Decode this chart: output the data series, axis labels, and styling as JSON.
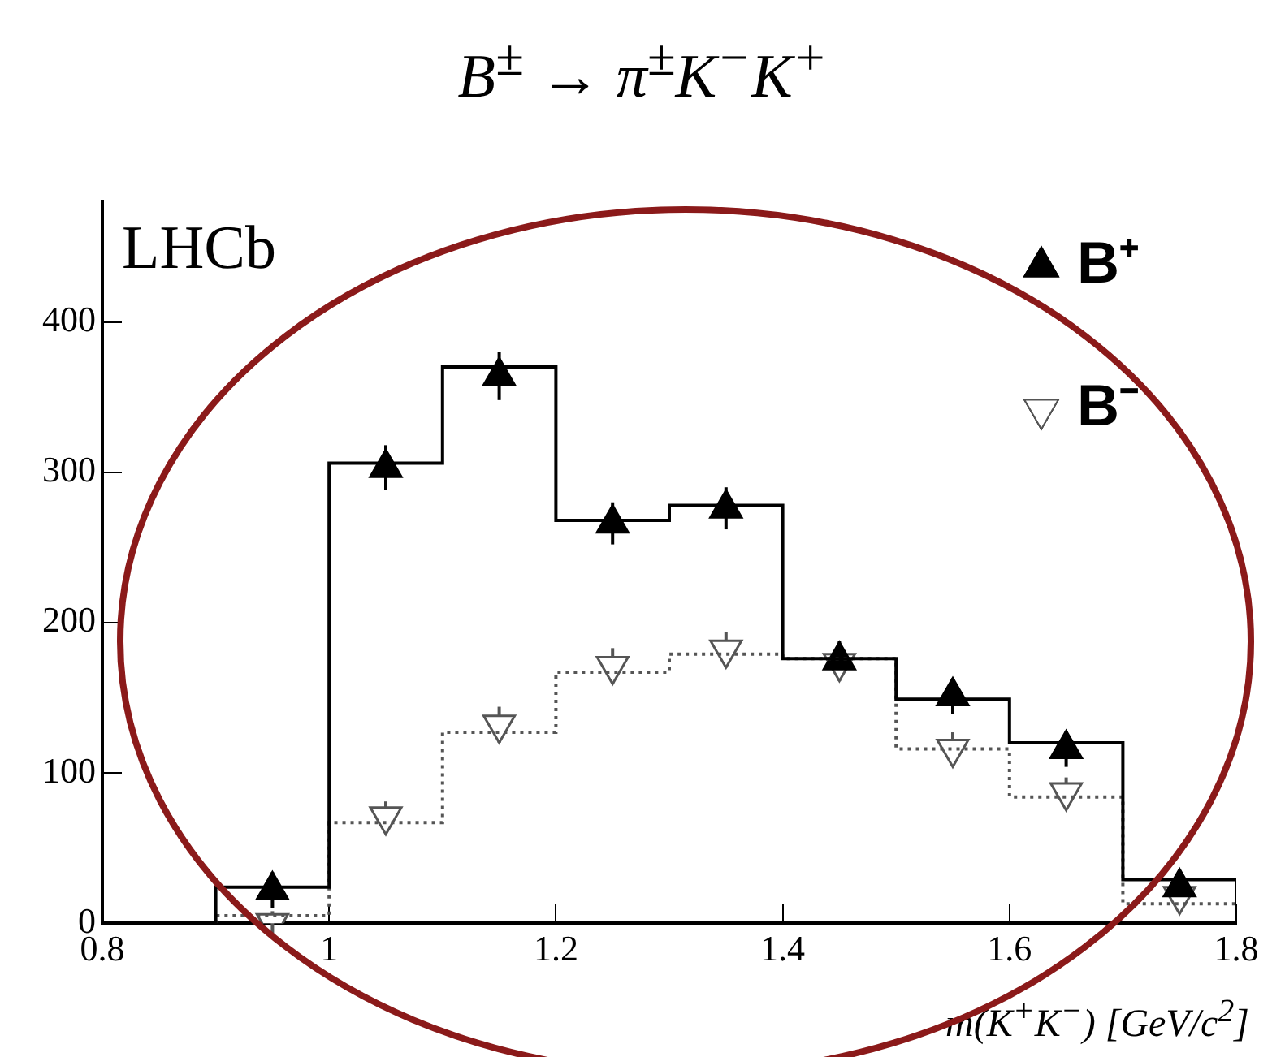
{
  "chart_data": {
    "type": "histogram",
    "title": "B$^{±}$ → π$^{±}$K$^{−}$K$^{+}$",
    "xlabel": "m(K$^{+}$K$^{−}$) [GeV/c$^{2}$]",
    "annotations": [
      "LHCb"
    ],
    "bins": [
      0.9,
      1.0,
      1.1,
      1.2,
      1.3,
      1.4,
      1.5,
      1.6,
      1.7,
      1.8
    ],
    "series": [
      {
        "color": "#000000",
        "line_style": "solid",
        "values": [
          24,
          306,
          370,
          268,
          278,
          176,
          149,
          120,
          29
        ]
      },
      {
        "color": "#555555",
        "line_style": "dotted",
        "values": [
          5,
          67,
          127,
          167,
          179,
          176,
          116,
          84,
          13
        ]
      },
      {
        "type": "scatter",
        "name": "B⁺",
        "color": "#000000",
        "marker": "triangle",
        "x": [
          0.95,
          1.05,
          1.15,
          1.25,
          1.35,
          1.45,
          1.55,
          1.65,
          1.75
        ],
        "values": [
          22,
          303,
          364,
          266,
          276,
          175,
          151,
          116,
          24
        ],
        "errors": [
          12,
          15,
          16,
          14,
          14,
          13,
          12,
          12,
          10
        ]
      },
      {
        "type": "scatter",
        "name": "B⁻",
        "color": "#555555",
        "marker": "triangle-down",
        "x": [
          0.95,
          1.05,
          1.15,
          1.25,
          1.35,
          1.45,
          1.55,
          1.65,
          1.75
        ],
        "values": [
          0,
          71,
          132,
          171,
          182,
          173,
          116,
          87,
          18
        ],
        "errors": [
          8,
          10,
          12,
          12,
          12,
          12,
          11,
          10,
          8
        ]
      }
    ],
    "xlim": [
      0.8,
      1.8
    ],
    "xticks": [
      0.8,
      1,
      1.2,
      1.4,
      1.6,
      1.8
    ],
    "ylim": [
      0,
      480
    ],
    "yticks": [
      0,
      100,
      200,
      300,
      400
    ],
    "grid": false,
    "legend": "top right"
  }
}
